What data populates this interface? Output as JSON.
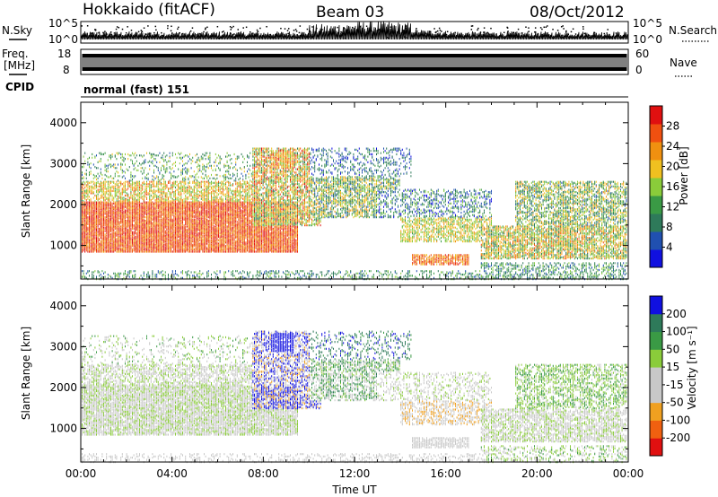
{
  "header": {
    "station": "Hokkaido (fitACF)",
    "beam": "Beam 03",
    "date": "08/Oct/2012"
  },
  "strip_labels": {
    "nsky": "N.Sky",
    "nsearch": "N.Search",
    "freq_line1": "Freq.",
    "freq_line2": "[MHz]",
    "nave": "Nave",
    "cpid": "CPID",
    "cpid_value": "normal (fast) 151",
    "nsky_ticks": [
      "10^5",
      "10^0"
    ],
    "nsearch_ticks": [
      "10^5",
      "10^0"
    ],
    "freq_ticks": [
      "18",
      "8"
    ],
    "nave_ticks": [
      "60",
      "0"
    ]
  },
  "colors": {
    "power_scale": [
      "#1010e0",
      "#2050b0",
      "#2e7a5a",
      "#3a9a45",
      "#8acc3a",
      "#f0c020",
      "#f09010",
      "#f05010",
      "#e01010"
    ],
    "velocity_scale": [
      "#e01010",
      "#f06010",
      "#f0a020",
      "#c8c8c8",
      "#c8c8c8",
      "#8acc3a",
      "#3a9a45",
      "#2e7a5a",
      "#1010e0"
    ]
  },
  "chart_data": [
    {
      "type": "heatmap",
      "xlabel": "",
      "ylabel": "Slant Range [km]",
      "xlim": [
        0,
        24
      ],
      "ylim": [
        180,
        4500
      ],
      "yticks": [
        "1000",
        "2000",
        "3000",
        "4000"
      ],
      "colorbar": {
        "label": "Power [dB]",
        "ticks": [
          "28",
          "24",
          "20",
          "16",
          "12",
          "8",
          "4"
        ]
      }
    },
    {
      "type": "heatmap",
      "xlabel": "Time UT",
      "ylabel": "Slant Range [km]",
      "xlim": [
        0,
        24
      ],
      "ylim": [
        180,
        4500
      ],
      "xticks": [
        "00:00",
        "04:00",
        "08:00",
        "12:00",
        "16:00",
        "20:00",
        "00:00"
      ],
      "yticks": [
        "1000",
        "2000",
        "3000",
        "4000"
      ],
      "colorbar": {
        "label": "Velocity [m s⁻¹]",
        "ticks": [
          "200",
          "100",
          "50",
          "15",
          "-15",
          "-50",
          "-100",
          "-200"
        ]
      }
    }
  ]
}
